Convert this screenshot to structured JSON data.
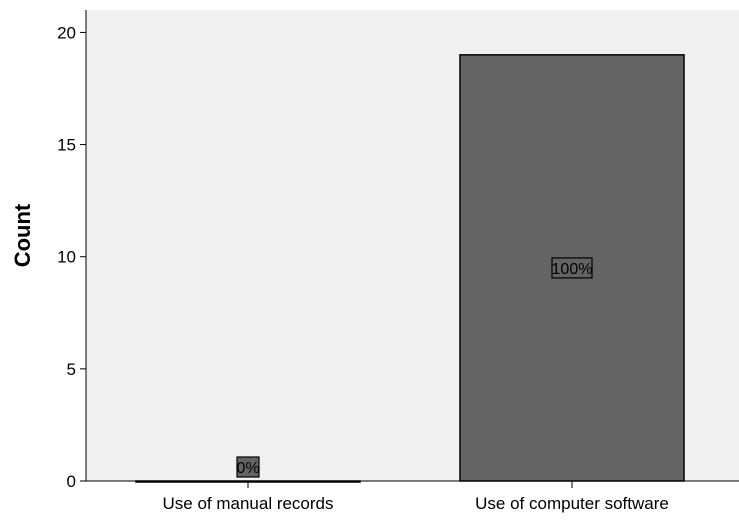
{
  "chart_data": {
    "type": "bar",
    "categories": [
      "Use of manual records",
      "Use of computer software"
    ],
    "values": [
      0,
      19
    ],
    "data_labels": [
      "0%",
      "100%"
    ],
    "xlabel": "",
    "ylabel": "Count",
    "ylim": [
      0,
      21
    ],
    "yticks": [
      0,
      5,
      10,
      15,
      20
    ],
    "grid": false,
    "colors": {
      "plot_background": "#f0f0f0",
      "bar_fill": "#646464",
      "bar_stroke": "#000000",
      "label_box_fill": "#646464"
    }
  }
}
